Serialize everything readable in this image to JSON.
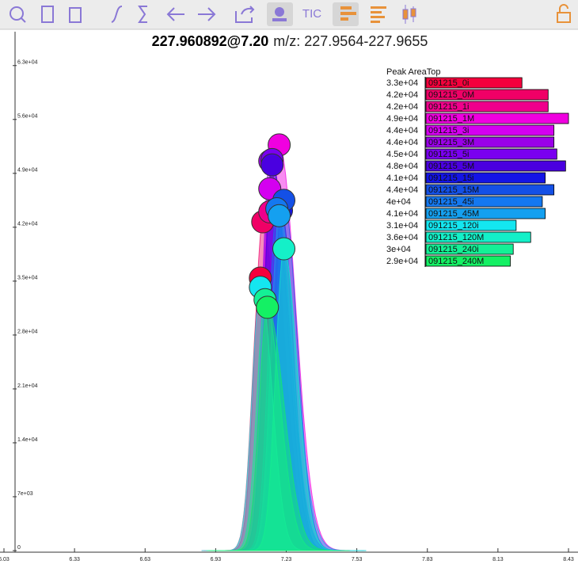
{
  "toolbar": {
    "tic_label": "TIC"
  },
  "chart_data": {
    "type": "area",
    "title": "227.960892@7.20",
    "subtitle": "m/z: 227.9564-227.9655",
    "legend_title": "Peak AreaTop",
    "xlim": [
      6.03,
      8.43
    ],
    "xticks": [
      6.03,
      6.33,
      6.63,
      6.93,
      7.23,
      7.53,
      7.83,
      8.13,
      8.43
    ],
    "ylim": [
      0,
      67400
    ],
    "yticks": [
      0,
      {
        "value": 7000,
        "label": "7e+03"
      },
      {
        "value": 14000,
        "label": "1.4e+04"
      },
      {
        "value": 21000,
        "label": "2.1e+04"
      },
      {
        "value": 28000,
        "label": "2.8e+04"
      },
      {
        "value": 35000,
        "label": "3.5e+04"
      },
      {
        "value": 42000,
        "label": "4.2e+04"
      },
      {
        "value": 49000,
        "label": "4.9e+04"
      },
      {
        "value": 56000,
        "label": "5.6e+04"
      },
      {
        "value": 63000,
        "label": "6.3e+04"
      }
    ],
    "series": [
      {
        "name": "091215_0i",
        "color": "#f5003c",
        "x": [
          7.12
        ],
        "values": [
          35400
        ],
        "area": 33000,
        "area_label": "3.3e+04"
      },
      {
        "name": "091215_0M",
        "color": "#f00066",
        "x": [
          7.13
        ],
        "values": [
          42700
        ],
        "area": 42000,
        "area_label": "4.2e+04"
      },
      {
        "name": "091215_1i",
        "color": "#f0008c",
        "x": [
          7.16
        ],
        "values": [
          44000
        ],
        "area": 42000,
        "area_label": "4.2e+04"
      },
      {
        "name": "091215_1M",
        "color": "#f000e0",
        "x": [
          7.2
        ],
        "values": [
          52700
        ],
        "area": 49000,
        "area_label": "4.9e+04"
      },
      {
        "name": "091215_3i",
        "color": "#d400f0",
        "x": [
          7.16
        ],
        "values": [
          47000
        ],
        "area": 44000,
        "area_label": "4.4e+04"
      },
      {
        "name": "091215_3M",
        "color": "#9a00e8",
        "x": [
          7.16
        ],
        "values": [
          50600
        ],
        "area": 44000,
        "area_label": "4.4e+04"
      },
      {
        "name": "091215_5i",
        "color": "#7a00f0",
        "x": [
          7.17
        ],
        "values": [
          50800
        ],
        "area": 45000,
        "area_label": "4.5e+04"
      },
      {
        "name": "091215_5M",
        "color": "#4a00e0",
        "x": [
          7.17
        ],
        "values": [
          50100
        ],
        "area": 48000,
        "area_label": "4.8e+04"
      },
      {
        "name": "091215_15i",
        "color": "#1414e6",
        "x": [
          7.21
        ],
        "values": [
          44200
        ],
        "area": 41000,
        "area_label": "4.1e+04"
      },
      {
        "name": "091215_15M",
        "color": "#1450e6",
        "x": [
          7.22
        ],
        "values": [
          45500
        ],
        "area": 44000,
        "area_label": "4.4e+04"
      },
      {
        "name": "091215_45i",
        "color": "#1478f0",
        "x": [
          7.19
        ],
        "values": [
          44400
        ],
        "area": 40000,
        "area_label": "4e+04"
      },
      {
        "name": "091215_45M",
        "color": "#14a0f0",
        "x": [
          7.2
        ],
        "values": [
          43500
        ],
        "area": 41000,
        "area_label": "4.1e+04"
      },
      {
        "name": "091215_120i",
        "color": "#14e6f0",
        "x": [
          7.12
        ],
        "values": [
          34200
        ],
        "area": 31000,
        "area_label": "3.1e+04"
      },
      {
        "name": "091215_120M",
        "color": "#14f0c8",
        "x": [
          7.22
        ],
        "values": [
          39200
        ],
        "area": 36000,
        "area_label": "3.6e+04"
      },
      {
        "name": "091215_240i",
        "color": "#14f096",
        "x": [
          7.14
        ],
        "values": [
          32600
        ],
        "area": 30000,
        "area_label": "3e+04"
      },
      {
        "name": "091215_240M",
        "color": "#14f064",
        "x": [
          7.15
        ],
        "values": [
          31600
        ],
        "area": 29000,
        "area_label": "2.9e+04"
      }
    ]
  }
}
